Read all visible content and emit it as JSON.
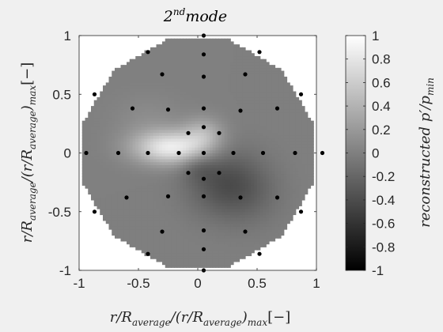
{
  "chart_data": {
    "type": "heatmap",
    "title": "2",
    "title_superscript": "nd",
    "title_rest": "mode",
    "xlabel": "r/R",
    "xlabel_sub1": "average",
    "xlabel_mid": "/(r/R",
    "xlabel_sub2": "average",
    "xlabel_end": ")",
    "xlabel_sub3": "max",
    "xlabel_unit": "[−]",
    "ylabel": "r/R",
    "ylabel_sub1": "average",
    "ylabel_mid": "/(r/R",
    "ylabel_sub2": "average",
    "ylabel_end": ")",
    "ylabel_sub3": "max",
    "ylabel_unit": "[−]",
    "colorbar_label_pre": "reconstructed p",
    "colorbar_label_prime": "′",
    "colorbar_label_mid": "/p",
    "colorbar_label_sub": "min",
    "xlim": [
      -1,
      1
    ],
    "ylim": [
      -1,
      1
    ],
    "xticks": [
      "-1",
      "-0.5",
      "0",
      "0.5",
      "1"
    ],
    "yticks": [
      "-1",
      "-0.5",
      "0",
      "0.5",
      "1"
    ],
    "colorbar_range": [
      -1,
      1
    ],
    "colorbar_ticks": [
      "1",
      "0.8",
      "0.6",
      "0.4",
      "0.2",
      "0",
      "-0.2",
      "-0.4",
      "-0.6",
      "-0.8",
      "-1"
    ],
    "colormap": "gray",
    "grid": false,
    "domain_polygon_sides": 12,
    "background_value": 0,
    "features": [
      {
        "x": -0.22,
        "y": 0.05,
        "value": 0.85,
        "sx": 0.22,
        "sy": 0.1
      },
      {
        "x": 0.05,
        "y": 0.17,
        "value": 0.35,
        "sx": 0.12,
        "sy": 0.1
      },
      {
        "x": -0.42,
        "y": 0.27,
        "value": 0.1,
        "sx": 0.2,
        "sy": 0.15
      },
      {
        "x": 0.22,
        "y": -0.25,
        "value": -0.35,
        "sx": 0.22,
        "sy": 0.2
      },
      {
        "x": 0.45,
        "y": -0.35,
        "value": -0.12,
        "sx": 0.2,
        "sy": 0.2
      },
      {
        "x": 0.0,
        "y": -0.12,
        "value": -0.15,
        "sx": 0.1,
        "sy": 0.08
      }
    ],
    "sensor_points": [
      [
        0.05,
        1.0
      ],
      [
        -0.42,
        0.86
      ],
      [
        0.05,
        0.84
      ],
      [
        0.52,
        0.86
      ],
      [
        -0.3,
        0.67
      ],
      [
        0.05,
        0.65
      ],
      [
        0.4,
        0.67
      ],
      [
        -0.87,
        0.5
      ],
      [
        0.87,
        0.5
      ],
      [
        -0.55,
        0.38
      ],
      [
        -0.25,
        0.37
      ],
      [
        0.05,
        0.38
      ],
      [
        0.36,
        0.36
      ],
      [
        0.67,
        0.38
      ],
      [
        0.05,
        0.22
      ],
      [
        -0.08,
        0.17
      ],
      [
        0.18,
        0.17
      ],
      [
        -0.94,
        0.0
      ],
      [
        -0.67,
        0.0
      ],
      [
        -0.42,
        0.0
      ],
      [
        -0.16,
        0.0
      ],
      [
        0.05,
        0.0
      ],
      [
        0.3,
        0.0
      ],
      [
        0.55,
        0.0
      ],
      [
        0.82,
        0.0
      ],
      [
        1.05,
        0.0
      ],
      [
        -0.08,
        -0.17
      ],
      [
        0.18,
        -0.17
      ],
      [
        0.05,
        -0.22
      ],
      [
        -0.6,
        -0.38
      ],
      [
        -0.25,
        -0.37
      ],
      [
        0.05,
        -0.37
      ],
      [
        0.36,
        -0.38
      ],
      [
        0.67,
        -0.38
      ],
      [
        -0.87,
        -0.5
      ],
      [
        0.87,
        -0.5
      ],
      [
        -0.3,
        -0.67
      ],
      [
        0.05,
        -0.66
      ],
      [
        0.4,
        -0.67
      ],
      [
        -0.42,
        -0.86
      ],
      [
        0.05,
        -0.82
      ],
      [
        0.52,
        -0.86
      ],
      [
        0.05,
        -1.0
      ]
    ]
  }
}
